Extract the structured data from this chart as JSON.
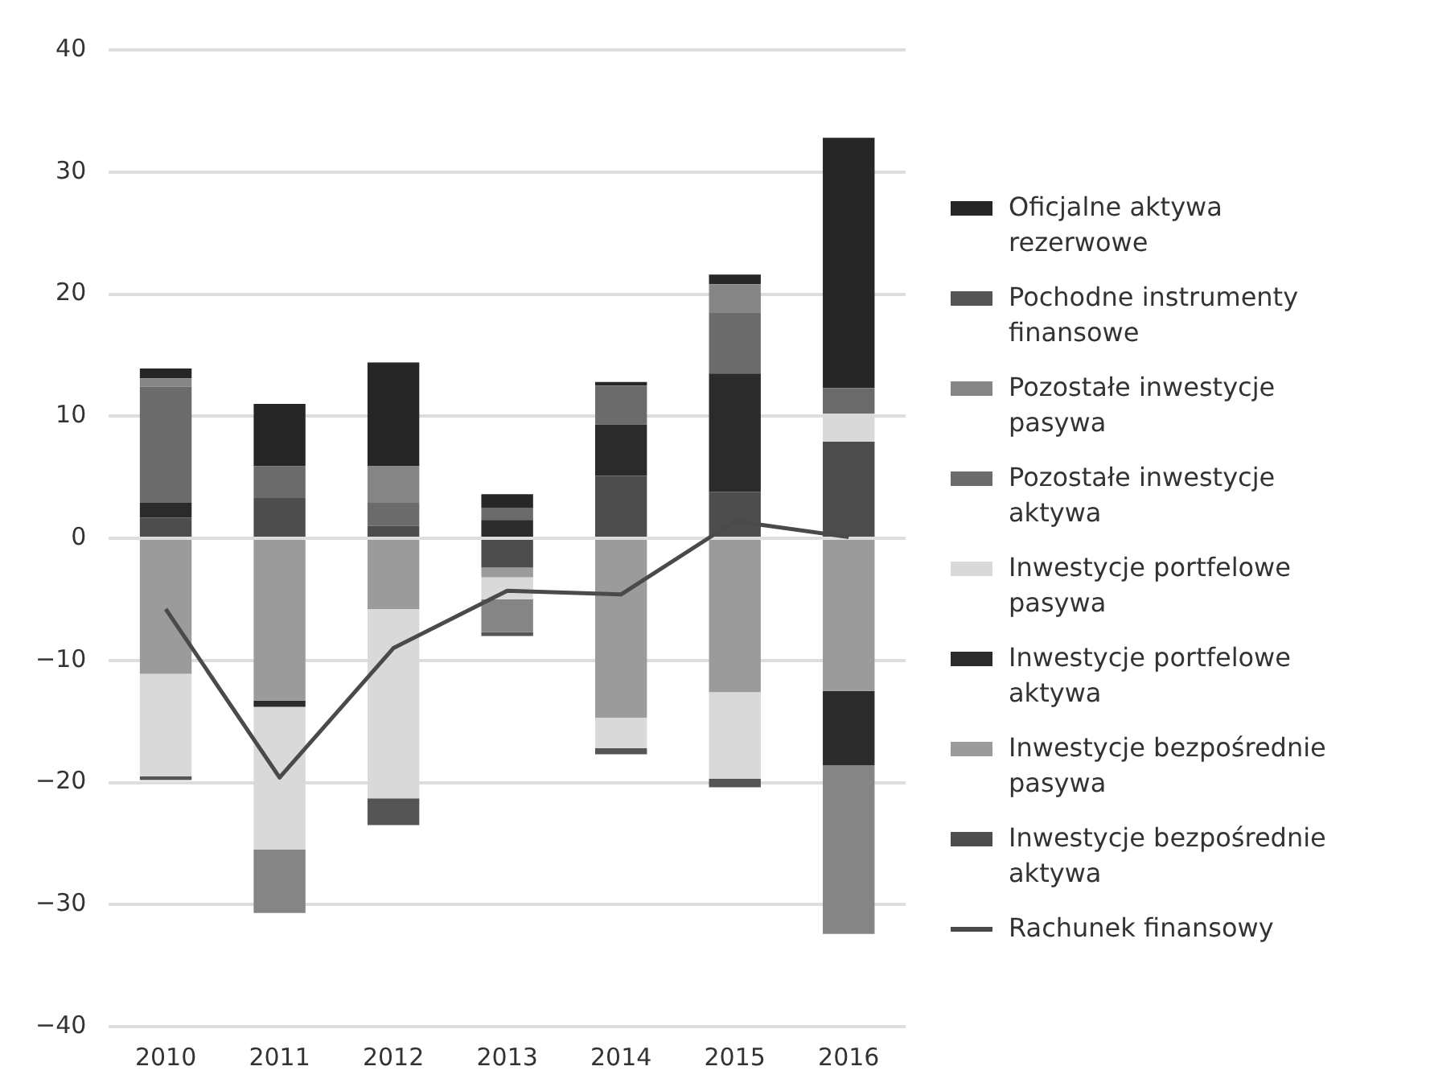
{
  "chart_data": {
    "type": "bar",
    "stacked": true,
    "categories": [
      "2010",
      "2011",
      "2012",
      "2013",
      "2014",
      "2015",
      "2016"
    ],
    "series": [
      {
        "name": "Inwestycje bezpośrednie aktywa",
        "color": "#4d4d4d",
        "values": [
          1.7,
          3.3,
          1.0,
          -2.4,
          5.1,
          3.8,
          7.9
        ]
      },
      {
        "name": "Inwestycje bezpośrednie pasywa",
        "color": "#9b9b9b",
        "values": [
          -11.1,
          -13.3,
          -5.8,
          -0.8,
          -14.7,
          -12.6,
          -12.5
        ]
      },
      {
        "name": "Inwestycje portfelowe aktywa",
        "color": "#2b2b2b",
        "values": [
          1.2,
          -0.5,
          null,
          1.5,
          4.2,
          9.7,
          -6.1
        ]
      },
      {
        "name": "Inwestycje portfelowe pasywa",
        "color": "#d9d9d9",
        "values": [
          -8.4,
          -11.7,
          -15.5,
          -1.8,
          -2.5,
          -7.1,
          2.3
        ]
      },
      {
        "name": "Pozostałe inwestycje aktywa",
        "color": "#6b6b6b",
        "values": [
          9.5,
          2.6,
          1.9,
          1.0,
          3.2,
          5.0,
          2.1
        ]
      },
      {
        "name": "Pozostałe inwestycje pasywa",
        "color": "#858585",
        "values": [
          0.7,
          -5.2,
          3.0,
          -2.7,
          null,
          2.3,
          -13.8
        ]
      },
      {
        "name": "Pochodne instrumenty finansowe",
        "color": "#555555",
        "values": [
          -0.3,
          null,
          -2.2,
          -0.3,
          -0.5,
          -0.7,
          null
        ]
      },
      {
        "name": "Oficjalne aktywa rezerwowe",
        "color": "#262626",
        "values": [
          0.8,
          5.1,
          8.5,
          1.1,
          0.3,
          0.8,
          20.5
        ]
      },
      {
        "name": "Rachunek finansowy",
        "type": "line",
        "color": "#4a4a4a",
        "values": [
          -5.8,
          -19.6,
          -9.0,
          -4.3,
          -4.6,
          1.4,
          0.1
        ]
      }
    ],
    "ylim": [
      -40,
      40
    ],
    "yticks": [
      {
        "value": -40,
        "label": "−40"
      },
      {
        "value": -30,
        "label": "−30"
      },
      {
        "value": -20,
        "label": "−20"
      },
      {
        "value": -10,
        "label": "−10"
      },
      0,
      10,
      20,
      30,
      40
    ],
    "grid": "y",
    "legend": "right",
    "marker": "none"
  }
}
